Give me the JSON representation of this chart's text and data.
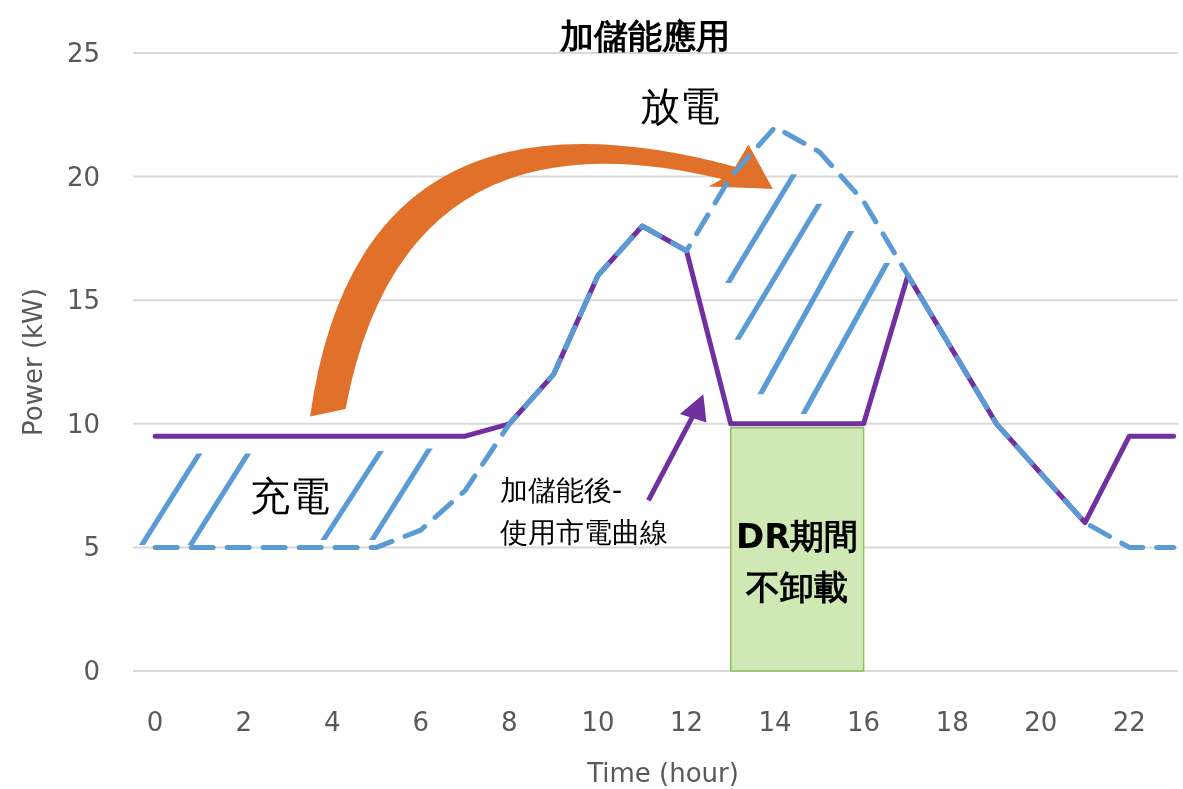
{
  "chart_data": {
    "type": "line",
    "title": "加儲能應用",
    "xlabel": "Time (hour)",
    "ylabel": "Power (kW)",
    "x": [
      0,
      1,
      2,
      3,
      4,
      5,
      6,
      7,
      8,
      9,
      10,
      11,
      12,
      13,
      14,
      15,
      16,
      17,
      18,
      19,
      20,
      21,
      22,
      23
    ],
    "series": [
      {
        "color": "#7030a0",
        "line_style": "solid",
        "values": [
          9.5,
          9.5,
          9.5,
          9.5,
          9.5,
          9.5,
          9.5,
          9.5,
          10,
          12,
          16,
          18,
          17,
          10,
          10,
          10,
          10,
          16,
          13,
          10,
          8,
          6,
          9.5,
          9.5
        ]
      },
      {
        "color": "#5b9bd5",
        "line_style": "dashed",
        "values": [
          5,
          5,
          5,
          5,
          5,
          5,
          5.7,
          7.3,
          10,
          12,
          16,
          18,
          17,
          20,
          22,
          21,
          19,
          16,
          13,
          10,
          8,
          6,
          5,
          5
        ]
      }
    ],
    "xlim": [
      -0.5,
      23.1
    ],
    "ylim": [
      0,
      25
    ],
    "xticks": [
      0,
      2,
      4,
      6,
      8,
      10,
      12,
      14,
      16,
      18,
      20,
      22
    ],
    "yticks": [
      0,
      5,
      10,
      15,
      20,
      25
    ],
    "grid": "y",
    "marker": "none",
    "bands": [
      {
        "axis": "x",
        "from": 13,
        "to": 16,
        "label": "DR期間不卸載",
        "color": "#d0e9b4"
      }
    ],
    "annotations": [
      "放電",
      "充電",
      "加儲能後-\n使用市電曲線"
    ]
  }
}
